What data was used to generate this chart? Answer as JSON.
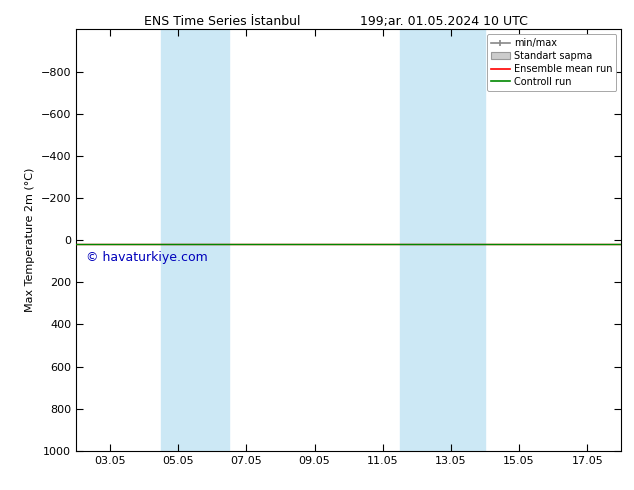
{
  "title_left": "ENS Time Series İstanbul",
  "title_right": "199;ar. 01.05.2024 10 UTC",
  "ylabel": "Max Temperature 2m (°C)",
  "ylim_bottom": -1000,
  "ylim_top": 1000,
  "yticks": [
    -800,
    -600,
    -400,
    -200,
    0,
    200,
    400,
    600,
    800,
    1000
  ],
  "xtick_labels": [
    "03.05",
    "05.05",
    "07.05",
    "09.05",
    "11.05",
    "13.05",
    "15.05",
    "17.05"
  ],
  "xtick_positions": [
    2,
    4,
    6,
    8,
    10,
    12,
    14,
    16
  ],
  "xlim": [
    1,
    17
  ],
  "shaded_regions": [
    {
      "start": 3.5,
      "end": 5.5
    },
    {
      "start": 10.5,
      "end": 13.0
    }
  ],
  "shaded_color": "#cce8f5",
  "watermark": "© havaturkiye.com",
  "watermark_color": "#0000bb",
  "watermark_fontsize": 9,
  "ensemble_mean_color": "#ff0000",
  "control_run_color": "#008800",
  "line_y": 20,
  "background_color": "#ffffff",
  "legend_minmax_color": "#888888",
  "legend_std_color": "#cccccc",
  "tick_fontsize": 8,
  "ylabel_fontsize": 8,
  "title_fontsize": 9
}
